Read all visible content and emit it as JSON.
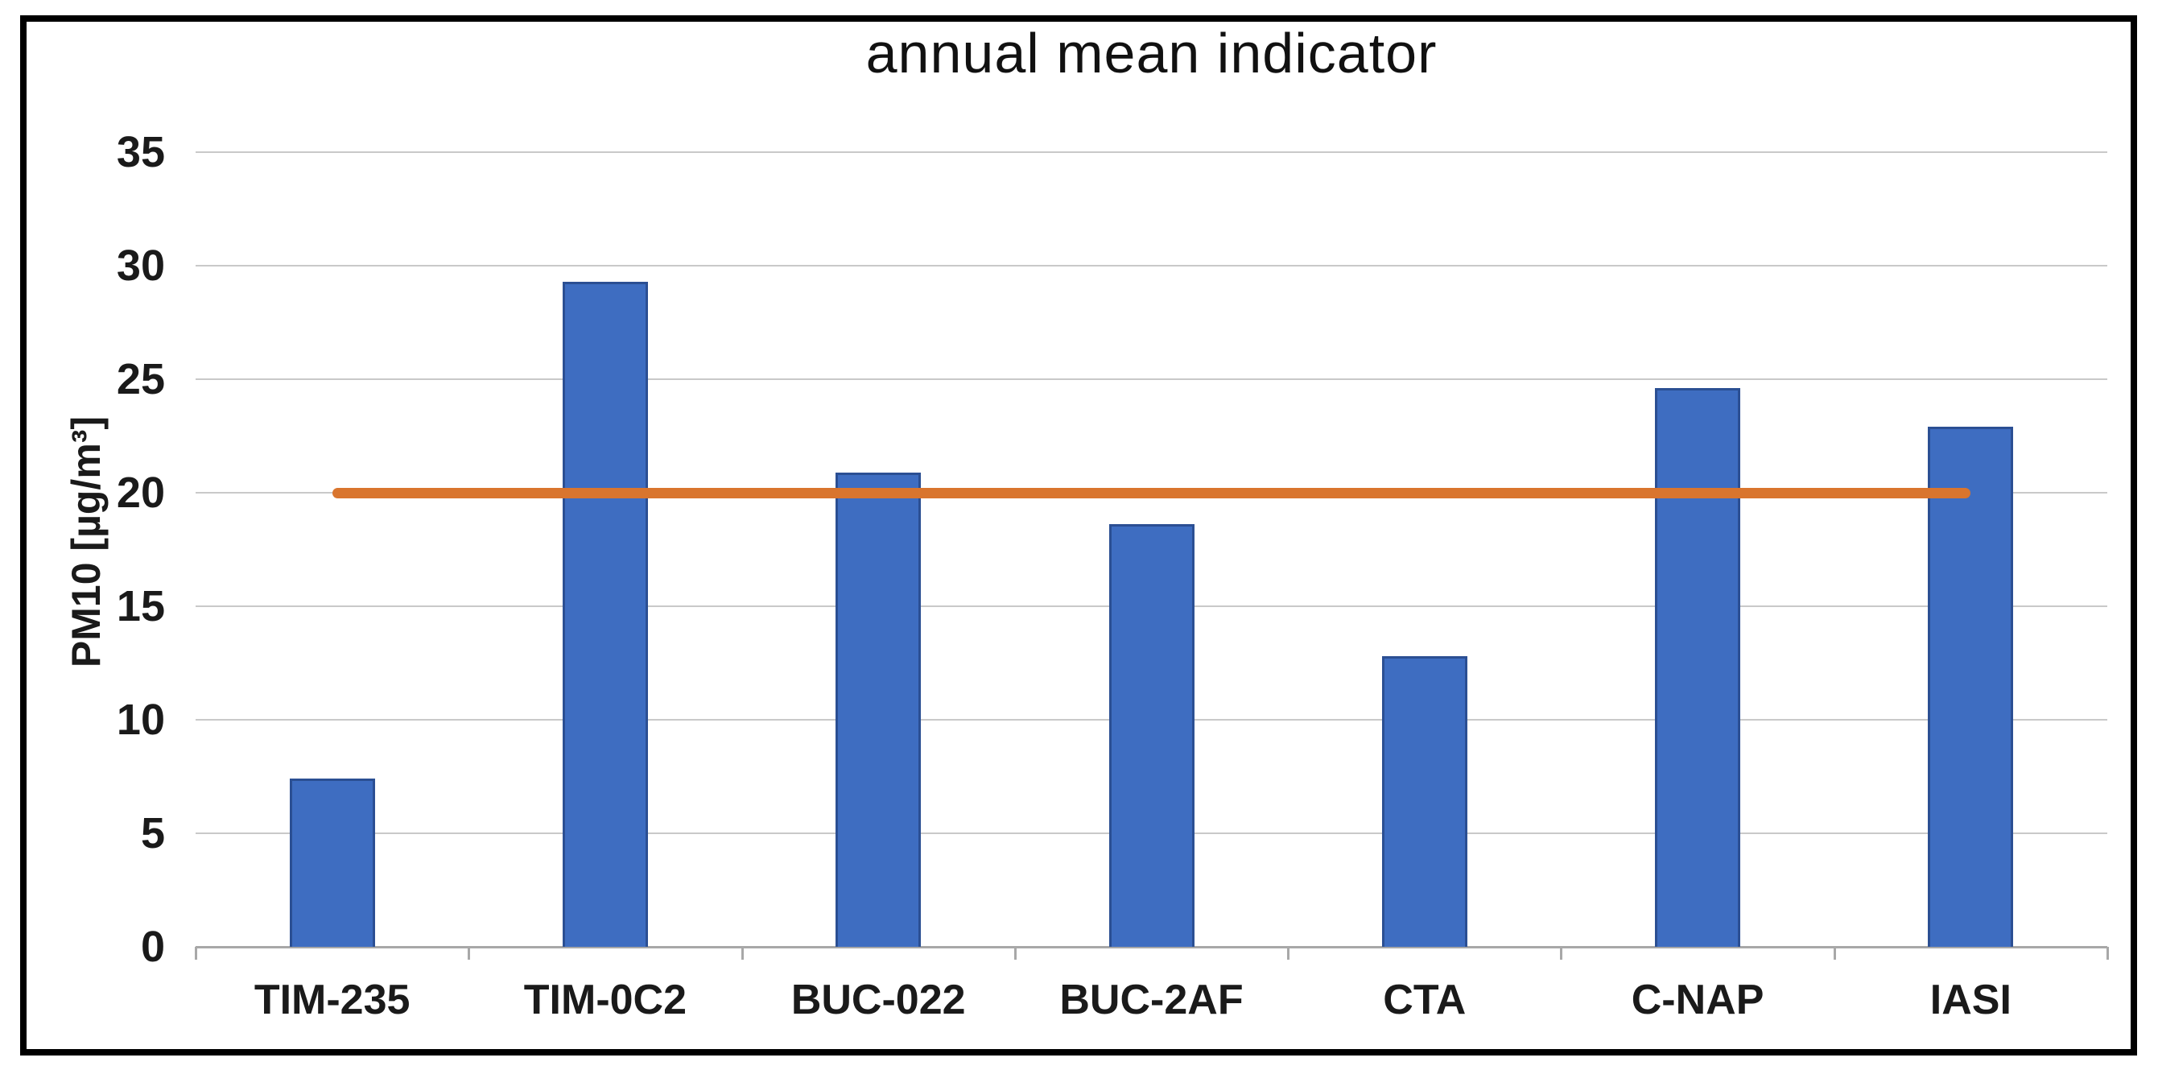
{
  "chart_data": {
    "type": "bar",
    "title": "annual mean indicator",
    "xlabel": "",
    "ylabel": "PM10 [µg/m³]",
    "categories": [
      "TIM-235",
      "TIM-0C2",
      "BUC-022",
      "BUC-2AF",
      "CTA",
      "C-NAP",
      "IASI"
    ],
    "values": [
      7.4,
      29.3,
      20.9,
      18.6,
      12.8,
      24.6,
      22.9
    ],
    "ylim": [
      0,
      35
    ],
    "yticks": [
      0,
      5,
      10,
      15,
      20,
      25,
      30,
      35
    ],
    "grid": true,
    "legend": "none",
    "reference_line": {
      "value": 20,
      "style": "solid rounded ends, drawn from first category center to last category center, on top of bars"
    },
    "colors": {
      "bar_fill": "#3e6dc1",
      "bar_border": "#2b4f93",
      "reference_line": "#d9752e",
      "gridline": "#c9c9c9",
      "axis": "#a8a8a8",
      "text": "#1a1a1a",
      "frame": "#000000",
      "background": "#ffffff"
    }
  }
}
